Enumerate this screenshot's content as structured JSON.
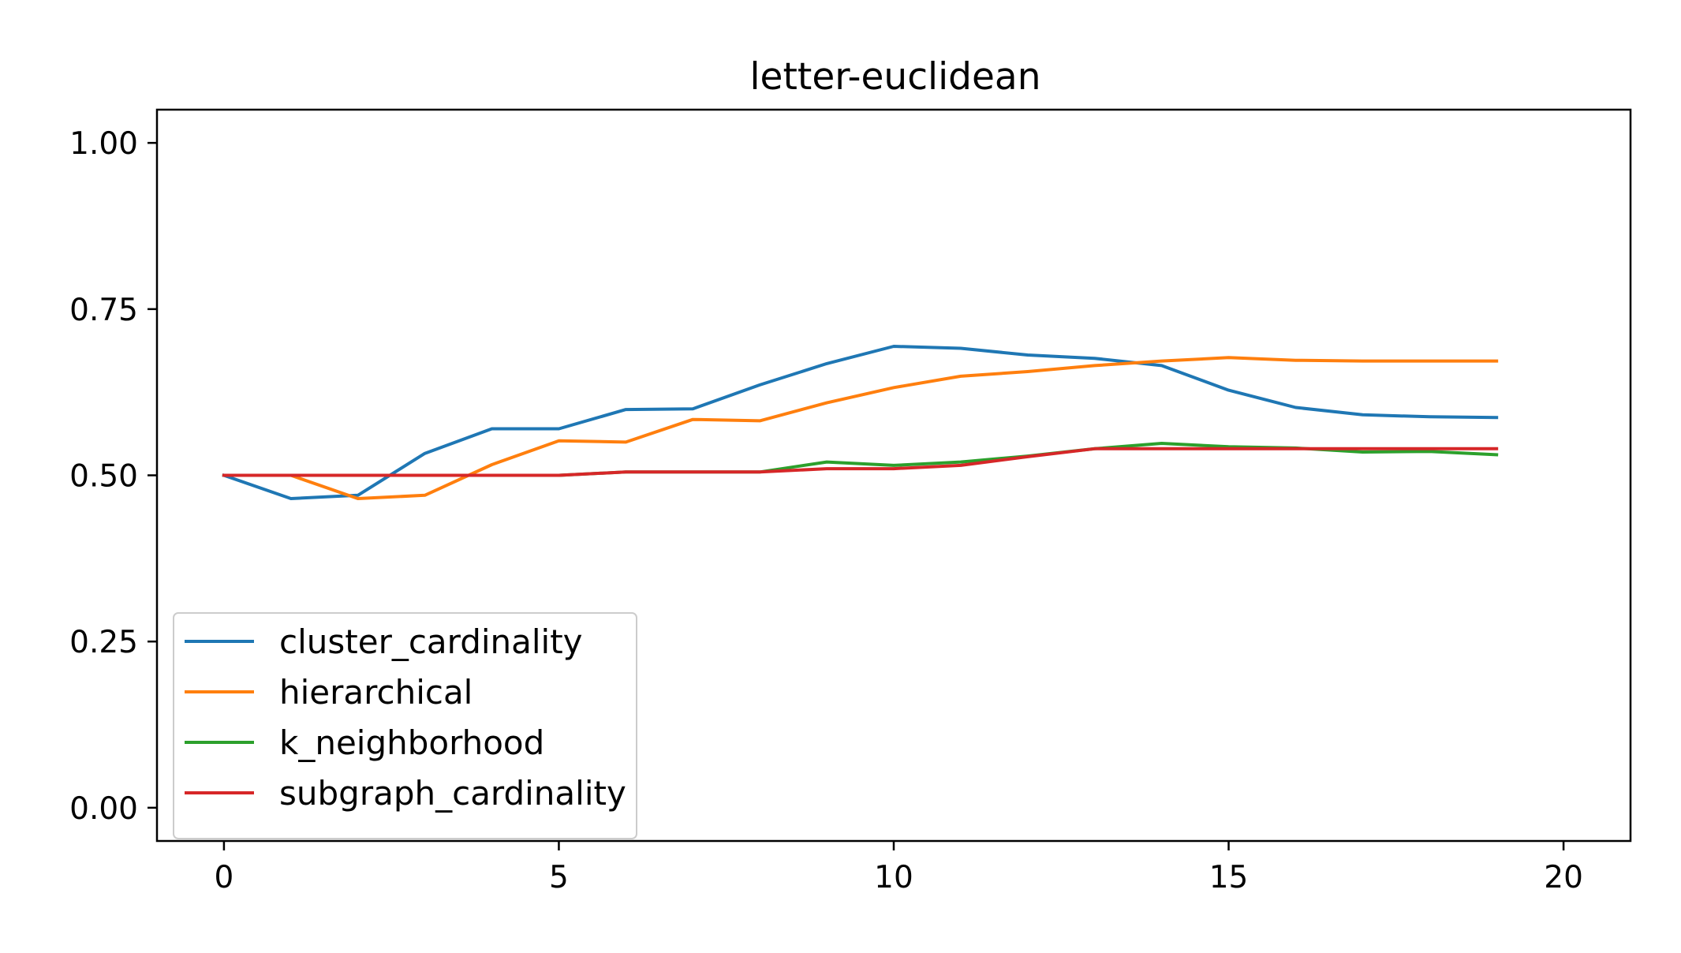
{
  "chart_data": {
    "type": "line",
    "title": "letter-euclidean",
    "xlabel": "",
    "ylabel": "",
    "xlim": [
      -1,
      21
    ],
    "ylim": [
      -0.05,
      1.05
    ],
    "xticks": [
      0,
      5,
      10,
      15,
      20
    ],
    "xtick_labels": [
      "0",
      "5",
      "10",
      "15",
      "20"
    ],
    "yticks": [
      0.0,
      0.25,
      0.5,
      0.75,
      1.0
    ],
    "ytick_labels": [
      "0.00",
      "0.25",
      "0.50",
      "0.75",
      "1.00"
    ],
    "grid": false,
    "legend_position": "lower-left",
    "x": [
      0,
      1,
      2,
      3,
      4,
      5,
      6,
      7,
      8,
      9,
      10,
      11,
      12,
      13,
      14,
      15,
      16,
      17,
      18,
      19
    ],
    "series": [
      {
        "name": "cluster_cardinality",
        "color": "#1f77b4",
        "values": [
          0.5,
          0.465,
          0.47,
          0.533,
          0.57,
          0.57,
          0.599,
          0.6,
          0.636,
          0.668,
          0.694,
          0.691,
          0.681,
          0.676,
          0.665,
          0.628,
          0.602,
          0.591,
          0.588,
          0.587
        ]
      },
      {
        "name": "hierarchical",
        "color": "#ff7f0e",
        "values": [
          0.5,
          0.5,
          0.465,
          0.47,
          0.516,
          0.552,
          0.55,
          0.584,
          0.582,
          0.609,
          0.632,
          0.649,
          0.656,
          0.665,
          0.672,
          0.677,
          0.673,
          0.672,
          0.672,
          0.672
        ]
      },
      {
        "name": "k_neighborhood",
        "color": "#2ca02c",
        "values": [
          0.5,
          0.5,
          0.5,
          0.5,
          0.5,
          0.5,
          0.505,
          0.505,
          0.505,
          0.52,
          0.515,
          0.52,
          0.529,
          0.54,
          0.548,
          0.543,
          0.541,
          0.535,
          0.536,
          0.531
        ]
      },
      {
        "name": "subgraph_cardinality",
        "color": "#d62728",
        "values": [
          0.5,
          0.5,
          0.5,
          0.5,
          0.5,
          0.5,
          0.505,
          0.505,
          0.505,
          0.51,
          0.51,
          0.515,
          0.528,
          0.54,
          0.54,
          0.54,
          0.54,
          0.54,
          0.54,
          0.54
        ]
      }
    ]
  }
}
